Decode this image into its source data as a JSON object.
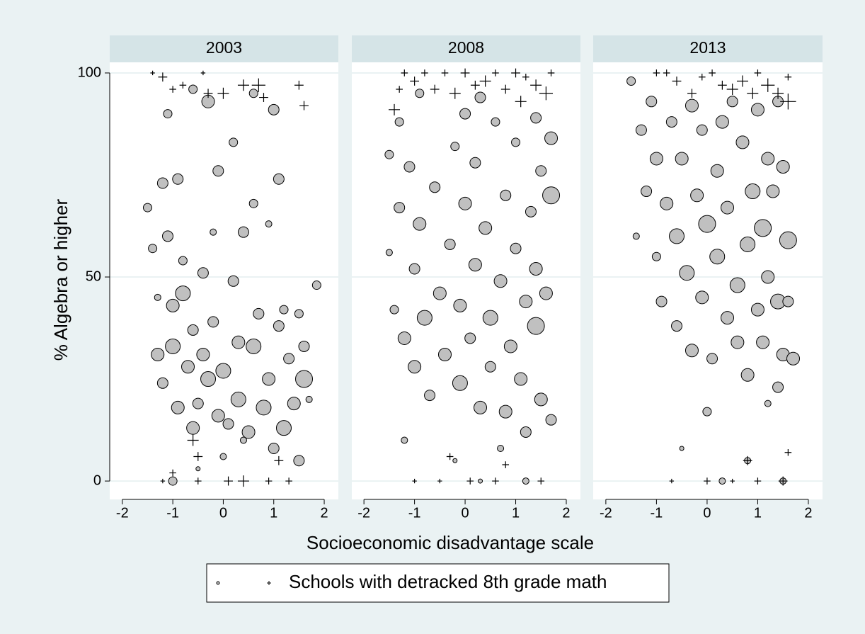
{
  "chart_data": [
    {
      "type": "scatter",
      "title": "2003",
      "xlabel": "Socioeconomic disadvantage scale",
      "ylabel": "% Algebra or higher",
      "xlim": [
        -2.25,
        2.28
      ],
      "ylim": [
        -4.5,
        102.6
      ],
      "xticks": [
        -2,
        -1,
        0,
        1,
        2
      ],
      "yticks": [
        0,
        50,
        100
      ],
      "grid": true,
      "series": [
        {
          "marker": "circle",
          "color": "#c0c0c0",
          "x": [
            -1.5,
            -1.4,
            -1.3,
            -1.2,
            -1.1,
            -1.1,
            -1.0,
            -0.9,
            -0.8,
            -1.3,
            -1.2,
            -1.0,
            -0.9,
            -0.8,
            -0.7,
            -0.6,
            -0.6,
            -0.5,
            -0.4,
            -0.4,
            -0.3,
            -0.2,
            -0.1,
            -0.1,
            0.0,
            0.1,
            0.2,
            0.3,
            0.3,
            0.4,
            0.5,
            0.6,
            0.6,
            0.7,
            0.8,
            0.9,
            1.0,
            1.0,
            1.1,
            1.1,
            1.2,
            1.3,
            1.4,
            1.5,
            1.6,
            1.6,
            1.85,
            -0.6,
            0.6,
            -1.0,
            0.0,
            -0.3,
            0.2,
            1.2,
            -0.2,
            0.9,
            1.5,
            -0.5,
            0.4,
            1.7
          ],
          "values": [
            67,
            57,
            45,
            73,
            90,
            60,
            43,
            74,
            54,
            31,
            24,
            33,
            18,
            46,
            28,
            37,
            13,
            19,
            31,
            51,
            25,
            39,
            76,
            16,
            27,
            14,
            49,
            34,
            20,
            61,
            12,
            33,
            68,
            41,
            18,
            25,
            8,
            91,
            74,
            38,
            13,
            30,
            19,
            5,
            25,
            33,
            48,
            96,
            95,
            0,
            6,
            93,
            83,
            42,
            61,
            63,
            41,
            3,
            10,
            20
          ],
          "sizes": [
            4,
            4,
            3,
            5,
            4,
            5,
            6,
            5,
            4,
            6,
            5,
            7,
            6,
            7,
            6,
            5,
            6,
            5,
            6,
            5,
            7,
            5,
            5,
            6,
            7,
            5,
            5,
            6,
            7,
            5,
            6,
            7,
            4,
            5,
            7,
            6,
            5,
            5,
            5,
            5,
            7,
            5,
            6,
            5,
            8,
            5,
            4,
            4,
            4,
            4,
            3,
            6,
            4,
            4,
            3,
            3,
            4,
            2,
            3,
            3
          ]
        },
        {
          "marker": "plus",
          "color": "#000000",
          "name": "Schools with detracked 8th grade math",
          "x": [
            -1.4,
            -1.2,
            -1.0,
            -0.8,
            -0.6,
            -0.5,
            -0.4,
            -0.3,
            0.0,
            0.4,
            0.7,
            0.8,
            1.5,
            1.6,
            -1.0,
            -0.5,
            0.1,
            0.4,
            0.9,
            1.3,
            1.1,
            -1.2
          ],
          "values": [
            100,
            99,
            96,
            97,
            10,
            6,
            100,
            95,
            95,
            97,
            97,
            94,
            97,
            92,
            2,
            0,
            0,
            0,
            0,
            0,
            5,
            0
          ],
          "sizes": [
            2,
            4,
            3,
            3,
            5,
            4,
            2,
            4,
            5,
            5,
            6,
            4,
            4,
            4,
            3,
            3,
            4,
            5,
            3,
            3,
            4,
            2
          ]
        }
      ]
    },
    {
      "type": "scatter",
      "title": "2008",
      "xlim": [
        -2.24,
        2.28
      ],
      "ylim": [
        -4.5,
        102.6
      ],
      "xticks": [
        -2,
        -1,
        0,
        1,
        2
      ],
      "yticks": [
        0,
        50,
        100
      ],
      "grid": true,
      "series": [
        {
          "marker": "circle",
          "color": "#c0c0c0",
          "x": [
            -1.5,
            -1.5,
            -1.4,
            -1.3,
            -1.2,
            -1.1,
            -1.0,
            -1.0,
            -0.9,
            -0.8,
            -0.7,
            -0.6,
            -0.5,
            -0.4,
            -0.3,
            -0.2,
            -0.1,
            -0.1,
            0.0,
            0.1,
            0.2,
            0.2,
            0.3,
            0.4,
            0.5,
            0.5,
            0.6,
            0.7,
            0.8,
            0.8,
            0.9,
            1.0,
            1.0,
            1.1,
            1.2,
            1.2,
            1.3,
            1.4,
            1.4,
            1.5,
            1.5,
            1.6,
            1.7,
            1.7,
            1.7,
            -1.2,
            0.7,
            -0.2,
            0.3,
            1.2,
            -0.9,
            0.3,
            1.4,
            -1.3,
            0.0
          ],
          "values": [
            80,
            56,
            42,
            67,
            35,
            77,
            28,
            52,
            63,
            40,
            21,
            72,
            46,
            31,
            58,
            82,
            24,
            43,
            68,
            35,
            53,
            78,
            18,
            62,
            40,
            28,
            88,
            49,
            17,
            70,
            33,
            57,
            83,
            25,
            44,
            12,
            66,
            38,
            52,
            20,
            76,
            46,
            70,
            15,
            84,
            10,
            8,
            5,
            0,
            0,
            95,
            94,
            89,
            88,
            90
          ],
          "sizes": [
            4,
            3,
            4,
            5,
            6,
            5,
            6,
            5,
            6,
            7,
            5,
            5,
            6,
            6,
            5,
            4,
            7,
            6,
            6,
            5,
            6,
            5,
            6,
            6,
            7,
            5,
            4,
            6,
            6,
            5,
            6,
            5,
            4,
            6,
            6,
            5,
            5,
            8,
            6,
            6,
            5,
            6,
            8,
            5,
            6,
            3,
            3,
            2,
            2,
            3,
            4,
            5,
            5,
            4,
            5
          ]
        },
        {
          "marker": "plus",
          "color": "#000000",
          "x": [
            -1.4,
            -1.3,
            -1.2,
            -1.0,
            -0.8,
            -0.6,
            -0.4,
            -0.2,
            0.0,
            0.2,
            0.4,
            0.6,
            0.8,
            1.0,
            1.1,
            1.2,
            1.4,
            1.6,
            1.7,
            -0.3,
            0.8,
            -1.0,
            0.1,
            0.6,
            1.5,
            -0.5
          ],
          "values": [
            91,
            96,
            100,
            98,
            100,
            96,
            100,
            95,
            100,
            97,
            98,
            100,
            96,
            100,
            93,
            99,
            97,
            95,
            100,
            6,
            4,
            0,
            0,
            0,
            0,
            0
          ],
          "sizes": [
            5,
            3,
            3,
            4,
            3,
            4,
            3,
            5,
            4,
            4,
            5,
            3,
            4,
            4,
            5,
            3,
            5,
            6,
            3,
            3,
            3,
            2,
            3,
            3,
            3,
            2
          ]
        }
      ]
    },
    {
      "type": "scatter",
      "title": "2013",
      "xlim": [
        -2.25,
        2.28
      ],
      "ylim": [
        -4.5,
        102.6
      ],
      "xticks": [
        -2,
        -1,
        0,
        1,
        2
      ],
      "yticks": [
        0,
        50,
        100
      ],
      "grid": true,
      "series": [
        {
          "marker": "circle",
          "color": "#c0c0c0",
          "x": [
            -1.5,
            -1.4,
            -1.3,
            -1.2,
            -1.1,
            -1.0,
            -1.0,
            -0.9,
            -0.8,
            -0.7,
            -0.6,
            -0.6,
            -0.5,
            -0.4,
            -0.3,
            -0.3,
            -0.2,
            -0.1,
            -0.1,
            0.0,
            0.0,
            0.1,
            0.2,
            0.2,
            0.3,
            0.4,
            0.4,
            0.5,
            0.6,
            0.6,
            0.7,
            0.8,
            0.8,
            0.9,
            1.0,
            1.0,
            1.1,
            1.1,
            1.2,
            1.2,
            1.3,
            1.4,
            1.4,
            1.5,
            1.5,
            1.6,
            1.6,
            1.7,
            1.4,
            0.8,
            0.3,
            1.5,
            -0.5,
            1.2
          ],
          "values": [
            98,
            60,
            86,
            71,
            93,
            79,
            55,
            44,
            68,
            88,
            60,
            38,
            79,
            51,
            92,
            32,
            70,
            86,
            45,
            63,
            17,
            30,
            76,
            55,
            88,
            40,
            67,
            93,
            48,
            34,
            83,
            58,
            26,
            71,
            42,
            91,
            62,
            34,
            79,
            50,
            71,
            44,
            93,
            31,
            77,
            59,
            44,
            30,
            23,
            5,
            0,
            0,
            8,
            19
          ],
          "sizes": [
            4,
            3,
            5,
            5,
            5,
            6,
            4,
            5,
            6,
            5,
            7,
            5,
            6,
            7,
            6,
            6,
            6,
            5,
            6,
            8,
            4,
            5,
            6,
            7,
            6,
            6,
            6,
            5,
            7,
            6,
            6,
            7,
            6,
            7,
            6,
            6,
            8,
            6,
            6,
            6,
            6,
            7,
            5,
            6,
            6,
            8,
            5,
            6,
            5,
            3,
            3,
            3,
            2,
            3
          ]
        },
        {
          "marker": "plus",
          "color": "#000000",
          "x": [
            -1.0,
            -0.8,
            -0.6,
            -0.3,
            -0.1,
            0.1,
            0.3,
            0.5,
            0.7,
            0.9,
            1.0,
            1.2,
            1.4,
            1.6,
            1.6,
            0.8,
            1.6,
            -0.7,
            0.0,
            0.5,
            1.0,
            1.5
          ],
          "values": [
            100,
            100,
            98,
            95,
            99,
            100,
            97,
            96,
            98,
            95,
            100,
            97,
            95,
            93,
            99,
            5,
            7,
            0,
            0,
            0,
            0,
            0
          ],
          "sizes": [
            3,
            3,
            4,
            4,
            3,
            3,
            4,
            5,
            5,
            5,
            3,
            6,
            5,
            7,
            3,
            4,
            3,
            2,
            3,
            2,
            3,
            4
          ]
        }
      ]
    }
  ]
}
